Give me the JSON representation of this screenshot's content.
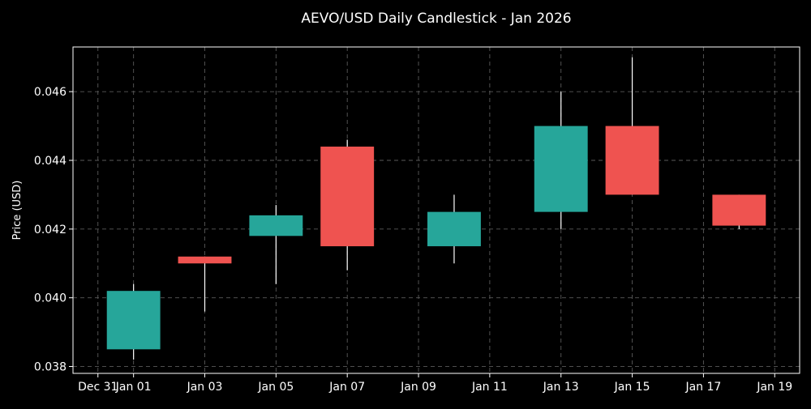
{
  "chart_data": {
    "type": "candlestick",
    "title": "AEVO/USD Daily Candlestick - Jan 2026",
    "xlabel": "",
    "ylabel": "Price (USD)",
    "x_tick_labels": [
      "Dec 31",
      "Jan 01",
      "Jan 03",
      "Jan 05",
      "Jan 07",
      "Jan 09",
      "Jan 11",
      "Jan 13",
      "Jan 15",
      "Jan 17",
      "Jan 19"
    ],
    "x_tick_days": [
      -1,
      0,
      2,
      4,
      6,
      8,
      10,
      12,
      14,
      16,
      18
    ],
    "y_ticks": [
      "0.038",
      "0.040",
      "0.042",
      "0.044",
      "0.046"
    ],
    "y_tick_values": [
      0.038,
      0.04,
      0.042,
      0.044,
      0.046
    ],
    "xlim_days": [
      -1.7,
      18.7
    ],
    "ylim": [
      0.0378,
      0.0473
    ],
    "grid": true,
    "up_color": "#26a69a",
    "down_color": "#ef5350",
    "background": "#000000",
    "candles": [
      {
        "date": "Jan 01",
        "day": 0,
        "open": 0.0385,
        "high": 0.0404,
        "low": 0.0382,
        "close": 0.0402
      },
      {
        "date": "Jan 03",
        "day": 2,
        "open": 0.0412,
        "high": 0.0412,
        "low": 0.0396,
        "close": 0.041
      },
      {
        "date": "Jan 05",
        "day": 4,
        "open": 0.0418,
        "high": 0.0427,
        "low": 0.0404,
        "close": 0.0424
      },
      {
        "date": "Jan 07",
        "day": 6,
        "open": 0.0444,
        "high": 0.0446,
        "low": 0.0408,
        "close": 0.0415
      },
      {
        "date": "Jan 10",
        "day": 9,
        "open": 0.0415,
        "high": 0.043,
        "low": 0.041,
        "close": 0.0425
      },
      {
        "date": "Jan 13",
        "day": 12,
        "open": 0.0425,
        "high": 0.046,
        "low": 0.042,
        "close": 0.045
      },
      {
        "date": "Jan 15",
        "day": 14,
        "open": 0.045,
        "high": 0.047,
        "low": 0.043,
        "close": 0.043
      },
      {
        "date": "Jan 18",
        "day": 17,
        "open": 0.043,
        "high": 0.043,
        "low": 0.042,
        "close": 0.0421
      }
    ]
  }
}
